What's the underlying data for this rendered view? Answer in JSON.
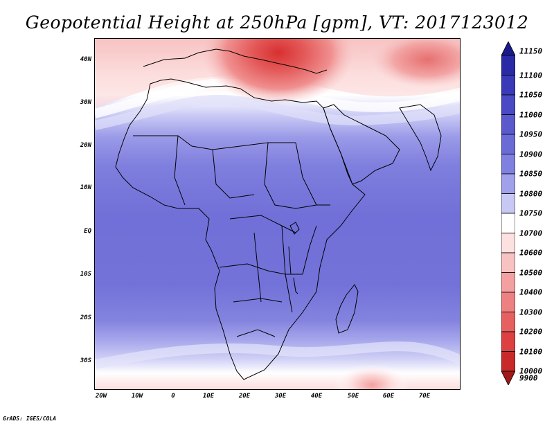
{
  "title": "Geopotential Height at 250hPa [gpm], VT: 2017123012",
  "credit": "GrADS: IGES/COLA",
  "map": {
    "lat_labels": [
      "40N",
      "30N",
      "20N",
      "10N",
      "EQ",
      "10S",
      "20S",
      "30S"
    ],
    "lat_values": [
      40,
      30,
      20,
      10,
      0,
      -10,
      -20,
      -30
    ],
    "lon_labels": [
      "20W",
      "10W",
      "0",
      "10E",
      "20E",
      "30E",
      "40E",
      "50E",
      "60E",
      "70E"
    ],
    "lon_values": [
      -20,
      -10,
      0,
      10,
      20,
      30,
      40,
      50,
      60,
      70
    ],
    "extent": {
      "lon_min": -22,
      "lon_max": 80,
      "lat_min": -37,
      "lat_max": 45
    }
  },
  "colorbar": {
    "labels": [
      "11150",
      "11100",
      "11050",
      "11000",
      "10950",
      "10900",
      "10850",
      "10800",
      "10750",
      "10700",
      "10600",
      "10500",
      "10400",
      "10300",
      "10200",
      "10100",
      "10000",
      "9900"
    ],
    "colors": [
      "#1a1a8c",
      "#2a2aa6",
      "#3a3ab8",
      "#4a4ac4",
      "#5a5acc",
      "#6b6bd6",
      "#8080e0",
      "#a0a0eb",
      "#c8c8f5",
      "#ffffff",
      "#fde0e0",
      "#f9c2c2",
      "#f4a0a0",
      "#ed8080",
      "#e66060",
      "#dd4040",
      "#c82a2a",
      "#a01818"
    ]
  }
}
